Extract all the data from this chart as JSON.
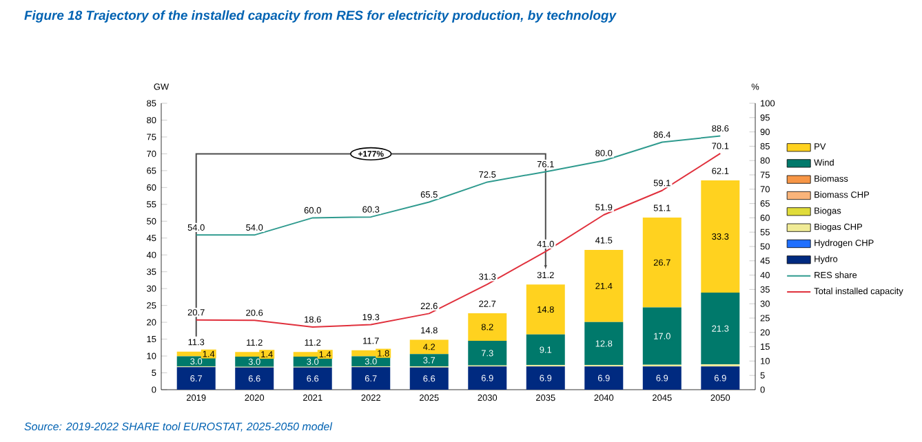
{
  "chart_data": {
    "type": "bar",
    "stacked": true,
    "title": "Figure 18 Trajectory of the installed capacity from RES for electricity production, by technology",
    "ylabel": "GW",
    "y2label": "%",
    "categories": [
      "2019",
      "2020",
      "2021",
      "2022",
      "2025",
      "2030",
      "2035",
      "2040",
      "2045",
      "2050"
    ],
    "series": [
      {
        "name": "Hydro",
        "color": "#002a80",
        "values": [
          6.7,
          6.6,
          6.6,
          6.7,
          6.6,
          6.9,
          6.9,
          6.9,
          6.9,
          6.9
        ],
        "value_labels": [
          "6.7",
          "6.6",
          "6.6",
          "6.7",
          "6.6",
          "6.9",
          "6.9",
          "6.9",
          "6.9",
          "6.9"
        ]
      },
      {
        "name": "Hydrogen CHP",
        "color": "#1f6fff",
        "values": [
          0,
          0,
          0,
          0,
          0,
          0,
          0,
          0,
          0,
          0
        ]
      },
      {
        "name": "Biogas CHP",
        "color": "#f0eb96",
        "values": [
          0.2,
          0.2,
          0.2,
          0.2,
          0.3,
          0.3,
          0.4,
          0.4,
          0.5,
          0.6
        ]
      },
      {
        "name": "Biogas",
        "color": "#e0dc3a",
        "values": [
          0,
          0,
          0,
          0,
          0,
          0,
          0,
          0,
          0,
          0
        ]
      },
      {
        "name": "Biomass CHP",
        "color": "#fab47a",
        "values": [
          0,
          0,
          0,
          0,
          0,
          0,
          0,
          0,
          0,
          0
        ]
      },
      {
        "name": "Biomass",
        "color": "#f79646",
        "values": [
          0,
          0,
          0,
          0,
          0,
          0,
          0,
          0,
          0,
          0
        ]
      },
      {
        "name": "Wind",
        "color": "#00796b",
        "values": [
          3.0,
          3.0,
          3.0,
          3.0,
          3.7,
          7.3,
          9.1,
          12.8,
          17.0,
          21.3
        ],
        "value_labels": [
          "3.0",
          "3.0",
          "3.0",
          "3.0",
          "3.7",
          "7.3",
          "9.1",
          "12.8",
          "17.0",
          "21.3"
        ]
      },
      {
        "name": "PV",
        "color": "#ffd21f",
        "values": [
          1.4,
          1.4,
          1.4,
          1.8,
          4.2,
          8.2,
          14.8,
          21.4,
          26.7,
          33.3
        ],
        "value_labels": [
          "1.4",
          "1.4",
          "1.4",
          "1.8",
          "4.2",
          "8.2",
          "14.8",
          "21.4",
          "26.7",
          "33.3"
        ]
      },
      {
        "name": "RES share",
        "type": "line",
        "axis": "y2",
        "color": "#2e9a8e",
        "values": [
          54.0,
          54.0,
          60.0,
          60.3,
          65.5,
          72.5,
          76.1,
          80.0,
          86.4,
          88.6
        ],
        "value_labels": [
          "54.0",
          "54.0",
          "60.0",
          "60.3",
          "65.5",
          "72.5",
          "76.1",
          "80.0",
          "86.4",
          "88.6"
        ]
      },
      {
        "name": "Total installed capacity",
        "type": "line",
        "color": "#e0303c",
        "values": [
          20.7,
          20.6,
          18.6,
          19.3,
          22.6,
          31.3,
          41.0,
          51.9,
          59.1,
          70.1
        ],
        "value_labels": [
          "20.7",
          "20.6",
          "18.6",
          "19.3",
          "22.6",
          "31.3",
          "41.0",
          "51.9",
          "59.1",
          "70.1"
        ]
      }
    ],
    "totals": [
      "11.3",
      "11.2",
      "11.2",
      "11.7",
      "14.8",
      "22.7",
      "31.2",
      "41.5",
      "51.1",
      "62.1"
    ],
    "ylim": [
      0,
      85
    ],
    "yticks": [
      0,
      5,
      10,
      15,
      20,
      25,
      30,
      35,
      40,
      45,
      50,
      55,
      60,
      65,
      70,
      75,
      80,
      85
    ],
    "y2lim": [
      0,
      100
    ],
    "y2ticks": [
      0,
      5,
      10,
      15,
      20,
      25,
      30,
      35,
      40,
      45,
      50,
      55,
      60,
      65,
      70,
      75,
      80,
      85,
      90,
      95,
      100
    ],
    "legend": "right",
    "marker": "none",
    "line_style": "solid",
    "grid": false,
    "annotations": [
      "+177%",
      "Source: 2019-2022 SHARE tool EUROSTAT, 2025-2050 model"
    ]
  }
}
